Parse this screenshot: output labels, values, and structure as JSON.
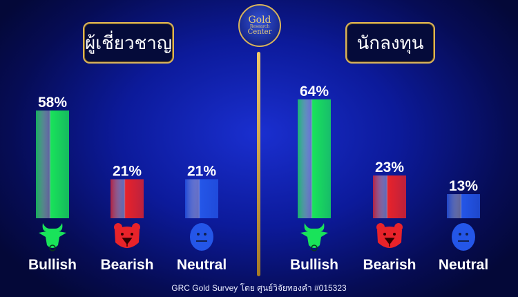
{
  "logo": {
    "text_line1": "Gold",
    "text_line2": "Research",
    "text_line3": "Center"
  },
  "footer": "GRC Gold Survey โดย ศูนย์วิจัยทองคำ #015323",
  "colors": {
    "bullish": "#19e35a",
    "bearish": "#e8232a",
    "neutral": "#2456e8",
    "gold": "#d9b45a"
  },
  "chart_data": [
    {
      "type": "bar",
      "title": "ผู้เชี่ยวชาญ",
      "categories": [
        "Bullish",
        "Bearish",
        "Neutral"
      ],
      "icons": [
        "bull-icon",
        "bear-icon",
        "neutral-face-icon"
      ],
      "values": [
        58,
        21,
        21
      ],
      "data_labels": [
        "58%",
        "21%",
        "21%"
      ],
      "ylim": [
        0,
        100
      ]
    },
    {
      "type": "bar",
      "title": "นักลงทุน",
      "categories": [
        "Bullish",
        "Bearish",
        "Neutral"
      ],
      "icons": [
        "bull-icon",
        "bear-icon",
        "neutral-face-icon"
      ],
      "values": [
        64,
        23,
        13
      ],
      "data_labels": [
        "64%",
        "23%",
        "13%"
      ],
      "ylim": [
        0,
        100
      ]
    }
  ]
}
